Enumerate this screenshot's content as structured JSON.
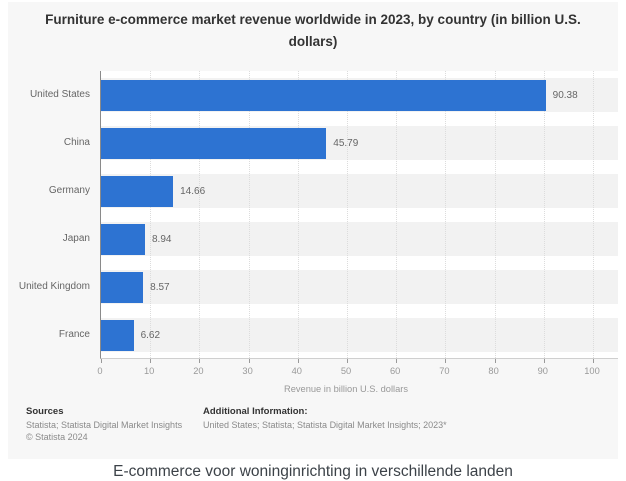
{
  "card": {
    "title": "Furniture e-commerce market revenue worldwide in 2023, by country (in billion U.S. dollars)"
  },
  "chart_data": {
    "type": "bar",
    "orientation": "horizontal",
    "title": "Furniture e-commerce market revenue worldwide in 2023, by country (in billion U.S. dollars)",
    "categories": [
      "United States",
      "China",
      "Germany",
      "Japan",
      "United Kingdom",
      "France"
    ],
    "values": [
      90.38,
      45.79,
      14.66,
      8.94,
      8.57,
      6.62
    ],
    "value_labels": [
      "90.38",
      "45.79",
      "14.66",
      "8.94",
      "8.57",
      "6.62"
    ],
    "xlabel": "Revenue in billion U.S. dollars",
    "ylabel": "",
    "xlim": [
      0,
      100
    ],
    "xticks": [
      0,
      10,
      20,
      30,
      40,
      50,
      60,
      70,
      80,
      90,
      100
    ],
    "grid": "vertical-dotted",
    "legend": "none",
    "bar_color": "#2d73d2"
  },
  "footer": {
    "sources_heading": "Sources",
    "sources_line": "Statista; Statista Digital Market Insights",
    "copyright": "© Statista 2024",
    "additional_heading": "Additional Information:",
    "additional_line": "United States; Statista; Statista Digital Market Insights; 2023*"
  },
  "caption": "E-commerce voor woninginrichting in verschillende landen"
}
